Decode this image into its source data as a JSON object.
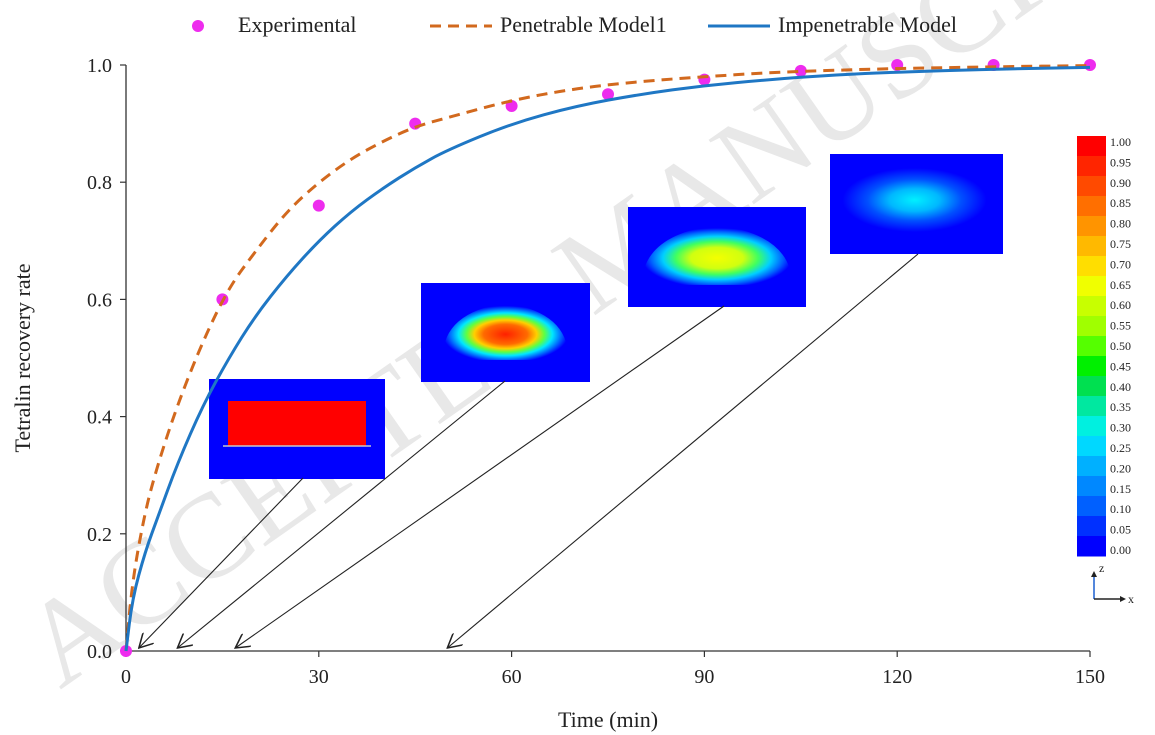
{
  "chart_data": {
    "type": "line",
    "xlabel": "Time (min)",
    "ylabel": "Tetralin recovery rate",
    "xlim": [
      0,
      150
    ],
    "ylim": [
      0,
      1.0
    ],
    "x_ticks": [
      "0",
      "30",
      "60",
      "90",
      "120",
      "150"
    ],
    "y_ticks": [
      "0.0",
      "0.2",
      "0.4",
      "0.6",
      "0.8",
      "1.0"
    ],
    "legend": {
      "placement": "top"
    },
    "series": [
      {
        "name": "Experimental",
        "kind": "scatter",
        "color": "#ee2cee",
        "x": [
          0,
          15,
          30,
          45,
          60,
          75,
          90,
          105,
          120,
          135,
          150
        ],
        "y": [
          0.0,
          0.6,
          0.76,
          0.9,
          0.93,
          0.95,
          0.975,
          0.99,
          1.0,
          1.0,
          1.0
        ]
      },
      {
        "name": "Penetrable Model1",
        "kind": "dashed-line",
        "color": "#d2691e",
        "x": [
          0,
          1,
          3,
          5,
          8,
          12,
          16,
          20,
          25,
          30,
          35,
          40,
          45,
          50,
          60,
          70,
          80,
          90,
          100,
          110,
          120,
          135,
          150
        ],
        "y": [
          0.0,
          0.12,
          0.24,
          0.32,
          0.42,
          0.53,
          0.62,
          0.68,
          0.75,
          0.8,
          0.84,
          0.87,
          0.895,
          0.91,
          0.94,
          0.96,
          0.972,
          0.98,
          0.987,
          0.991,
          0.994,
          0.997,
          0.999
        ]
      },
      {
        "name": "Impenetrable Model",
        "kind": "solid-line",
        "color": "#1f77c4",
        "x": [
          0,
          1,
          3,
          5,
          8,
          12,
          16,
          20,
          25,
          30,
          35,
          40,
          45,
          50,
          60,
          70,
          80,
          90,
          100,
          110,
          120,
          135,
          150
        ],
        "y": [
          0.0,
          0.09,
          0.17,
          0.23,
          0.32,
          0.42,
          0.5,
          0.57,
          0.64,
          0.7,
          0.75,
          0.79,
          0.825,
          0.855,
          0.9,
          0.93,
          0.95,
          0.965,
          0.975,
          0.983,
          0.988,
          0.993,
          0.996
        ]
      }
    ],
    "insets": [
      {
        "name": "snapshot-1",
        "kind": "rect-full",
        "time": 2
      },
      {
        "name": "snapshot-2",
        "kind": "band-high",
        "time": 8
      },
      {
        "name": "snapshot-3",
        "kind": "band-mid",
        "time": 17
      },
      {
        "name": "snapshot-4",
        "kind": "spot-low",
        "time": 50
      }
    ],
    "colorbar": {
      "labels": [
        "1.00",
        "0.95",
        "0.90",
        "0.85",
        "0.80",
        "0.75",
        "0.70",
        "0.65",
        "0.60",
        "0.55",
        "0.50",
        "0.45",
        "0.40",
        "0.35",
        "0.30",
        "0.25",
        "0.20",
        "0.15",
        "0.10",
        "0.05",
        "0.00"
      ],
      "colors": [
        "#ff0000",
        "#ff2500",
        "#ff4a00",
        "#ff6f00",
        "#ff9400",
        "#ffb900",
        "#ffde00",
        "#f0ff00",
        "#c8ff00",
        "#a0ff00",
        "#55ff00",
        "#00f000",
        "#00e050",
        "#00e8a0",
        "#00f0e0",
        "#00d8ff",
        "#00b0ff",
        "#0088ff",
        "#0060ff",
        "#0030ff",
        "#0000ff"
      ],
      "axis_z": "z",
      "axis_x": "x"
    },
    "watermark": "ACCEPTED MANUSCRIPT"
  }
}
